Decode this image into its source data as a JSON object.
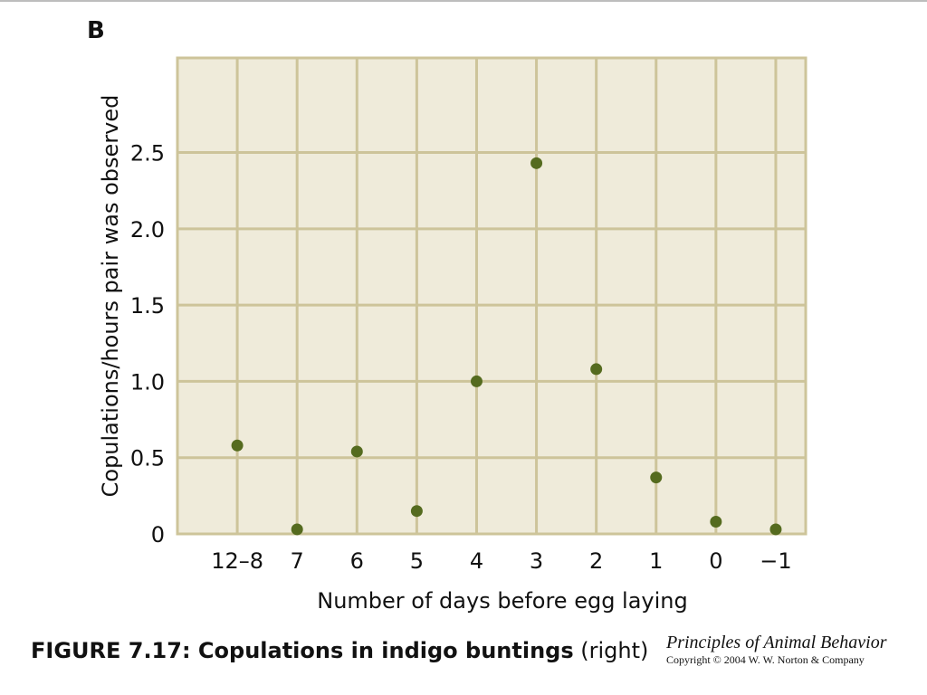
{
  "panel_label": "B",
  "caption": {
    "bold": "FIGURE 7.17: Copulations in indigo buntings",
    "normal": "(right)"
  },
  "credit": {
    "book": "Principles of Animal Behavior",
    "copyright": "Copyright © 2004 W. W. Norton & Company"
  },
  "colors": {
    "plot_background": "#efebda",
    "grid": "#cdc49a",
    "point": "#556b1f"
  },
  "chart_data": {
    "type": "scatter",
    "title": "",
    "xlabel": "Number of days before egg laying",
    "ylabel": "Copulations/hours pair was observed",
    "categories": [
      "12–8",
      "7",
      "6",
      "5",
      "4",
      "3",
      "2",
      "1",
      "0",
      "−1"
    ],
    "values": [
      0.58,
      0.03,
      0.54,
      0.15,
      1.0,
      2.43,
      1.08,
      0.37,
      0.08,
      0.03
    ],
    "ylim": [
      0,
      3.12
    ],
    "yticks": [
      0,
      0.5,
      1.0,
      1.5,
      2.0,
      2.5
    ],
    "ytick_labels": [
      "0",
      "0.5",
      "1.0",
      "1.5",
      "2.0",
      "2.5"
    ],
    "grid": true,
    "legend": "none"
  }
}
